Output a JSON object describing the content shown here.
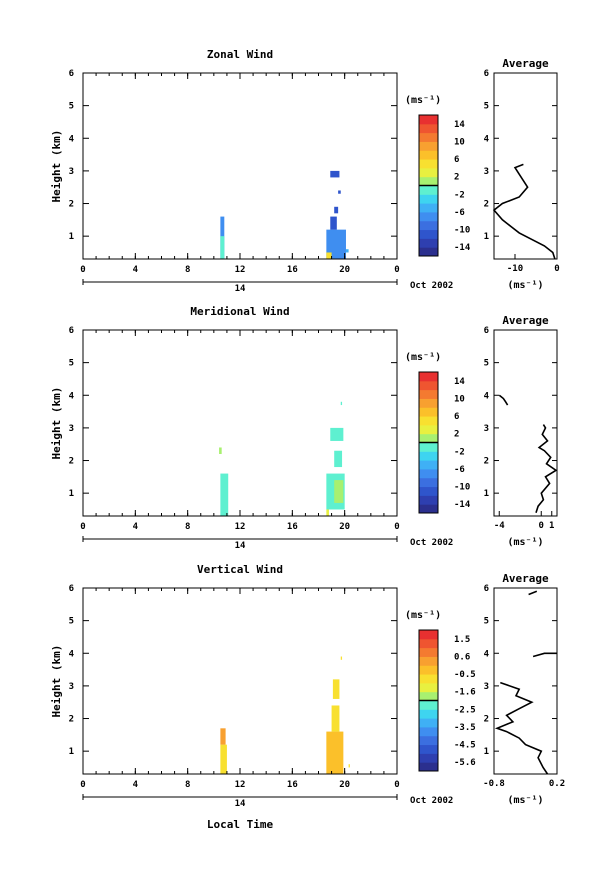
{
  "chart_data": [
    {
      "type": "heatmap",
      "title": "Zonal Wind",
      "ylabel": "Height (km)",
      "xlabel": "",
      "xticks": [
        "0",
        "4",
        "8",
        "12",
        "16",
        "20",
        "0"
      ],
      "yticks": [
        "1",
        "2",
        "3",
        "4",
        "5",
        "6"
      ],
      "xlim": [
        0,
        24
      ],
      "ylim": [
        0.3,
        6
      ],
      "date_day": "14",
      "date_month_year": "Oct 2002",
      "colorbar": {
        "unit": "(ms⁻¹)",
        "ticks": [
          "14",
          "10",
          "6",
          "2",
          "-2",
          "-6",
          "-10",
          "-14"
        ],
        "range": [
          -16,
          16
        ]
      },
      "cells": [
        {
          "t0": 10.5,
          "t1": 10.8,
          "h0": 0.3,
          "h1": 1.6,
          "v": -7
        },
        {
          "t0": 10.5,
          "t1": 10.8,
          "h0": 0.3,
          "h1": 1.0,
          "v": -2
        },
        {
          "t0": 18.6,
          "t1": 20.1,
          "h0": 0.3,
          "h1": 1.2,
          "v": -8
        },
        {
          "t0": 18.9,
          "t1": 19.4,
          "h0": 1.2,
          "h1": 1.6,
          "v": -12
        },
        {
          "t0": 18.6,
          "t1": 19.0,
          "h0": 0.3,
          "h1": 0.5,
          "v": 4
        },
        {
          "t0": 19.2,
          "t1": 19.5,
          "h0": 1.7,
          "h1": 1.9,
          "v": -12
        },
        {
          "t0": 19.5,
          "t1": 19.7,
          "h0": 2.3,
          "h1": 2.4,
          "v": -11
        },
        {
          "t0": 18.9,
          "t1": 19.6,
          "h0": 2.8,
          "h1": 3.0,
          "v": -11
        },
        {
          "t0": 20.1,
          "t1": 20.3,
          "h0": 0.5,
          "h1": 0.6,
          "v": -6
        }
      ],
      "average_profile": {
        "title": "Average",
        "unit": "(ms⁻¹)",
        "xticks": [
          "-10",
          "0"
        ],
        "xlim": [
          -15,
          0
        ],
        "ylim": [
          0.3,
          6
        ],
        "yticks": [
          "1",
          "2",
          "3",
          "4",
          "5",
          "6"
        ],
        "points": [
          {
            "v": -0.5,
            "h": 0.3
          },
          {
            "v": -1.0,
            "h": 0.5
          },
          {
            "v": -3,
            "h": 0.7
          },
          {
            "v": -6,
            "h": 0.9
          },
          {
            "v": -9,
            "h": 1.1
          },
          {
            "v": -11,
            "h": 1.3
          },
          {
            "v": -13,
            "h": 1.5
          },
          {
            "v": -15,
            "h": 1.8
          },
          {
            "v": -13,
            "h": 2.0
          },
          {
            "v": -9,
            "h": 2.2
          },
          {
            "v": -7,
            "h": 2.5
          },
          {
            "v": -8,
            "h": 2.7
          },
          {
            "v": -9,
            "h": 2.9
          },
          {
            "v": -10,
            "h": 3.1
          },
          {
            "v": -8,
            "h": 3.2
          }
        ]
      }
    },
    {
      "type": "heatmap",
      "title": "Meridional Wind",
      "ylabel": "Height (km)",
      "xlabel": "",
      "xticks": [
        "0",
        "4",
        "8",
        "12",
        "16",
        "20",
        "0"
      ],
      "yticks": [
        "1",
        "2",
        "3",
        "4",
        "5",
        "6"
      ],
      "xlim": [
        0,
        24
      ],
      "ylim": [
        0.3,
        6
      ],
      "date_day": "14",
      "date_month_year": "Oct 2002",
      "colorbar": {
        "unit": "(ms⁻¹)",
        "ticks": [
          "14",
          "10",
          "6",
          "2",
          "-2",
          "-6",
          "-10",
          "-14"
        ],
        "range": [
          -16,
          16
        ]
      },
      "cells": [
        {
          "t0": 10.5,
          "t1": 11.1,
          "h0": 0.3,
          "h1": 1.6,
          "v": -1
        },
        {
          "t0": 10.4,
          "t1": 10.6,
          "h0": 2.2,
          "h1": 2.4,
          "v": 0
        },
        {
          "t0": 18.6,
          "t1": 20.0,
          "h0": 0.5,
          "h1": 1.6,
          "v": -2
        },
        {
          "t0": 18.6,
          "t1": 18.8,
          "h0": 0.3,
          "h1": 0.5,
          "v": 2
        },
        {
          "t0": 19.2,
          "t1": 19.9,
          "h0": 0.7,
          "h1": 1.4,
          "v": 0
        },
        {
          "t0": 19.2,
          "t1": 19.8,
          "h0": 1.8,
          "h1": 2.3,
          "v": -1
        },
        {
          "t0": 18.9,
          "t1": 19.9,
          "h0": 2.6,
          "h1": 3.0,
          "v": -1
        },
        {
          "t0": 19.7,
          "t1": 19.8,
          "h0": 3.7,
          "h1": 3.8,
          "v": -1
        }
      ],
      "average_profile": {
        "title": "Average",
        "unit": "(ms⁻¹)",
        "xticks": [
          "-4",
          "0",
          "1"
        ],
        "xlim": [
          -4.5,
          1.5
        ],
        "ylim": [
          0.3,
          6
        ],
        "yticks": [
          "1",
          "2",
          "3",
          "4",
          "5",
          "6"
        ],
        "segments": [
          [
            {
              "v": -4.0,
              "h": 4.0
            },
            {
              "v": -3.6,
              "h": 3.9
            },
            {
              "v": -3.4,
              "h": 3.8
            },
            {
              "v": -3.2,
              "h": 3.7
            }
          ],
          [
            {
              "v": -0.5,
              "h": 0.4
            },
            {
              "v": -0.3,
              "h": 0.6
            },
            {
              "v": 0.2,
              "h": 0.8
            },
            {
              "v": 0.0,
              "h": 1.0
            },
            {
              "v": 0.8,
              "h": 1.3
            },
            {
              "v": 0.4,
              "h": 1.5
            },
            {
              "v": 1.4,
              "h": 1.7
            },
            {
              "v": 0.5,
              "h": 1.9
            },
            {
              "v": 0.9,
              "h": 2.1
            },
            {
              "v": 0.3,
              "h": 2.3
            },
            {
              "v": -0.2,
              "h": 2.4
            },
            {
              "v": 0.6,
              "h": 2.6
            },
            {
              "v": 0.1,
              "h": 2.8
            },
            {
              "v": 0.4,
              "h": 3.0
            },
            {
              "v": 0.2,
              "h": 3.1
            }
          ]
        ]
      }
    },
    {
      "type": "heatmap",
      "title": "Vertical Wind",
      "ylabel": "Height (km)",
      "xlabel": "Local Time",
      "xticks": [
        "0",
        "4",
        "8",
        "12",
        "16",
        "20",
        "0"
      ],
      "yticks": [
        "1",
        "2",
        "3",
        "4",
        "5",
        "6"
      ],
      "xlim": [
        0,
        24
      ],
      "ylim": [
        0.3,
        6
      ],
      "date_day": "14",
      "date_month_year": "Oct 2002",
      "colorbar": {
        "unit": "(ms⁻¹)",
        "ticks": [
          "1.5",
          "0.6",
          "-0.5",
          "-1.6",
          "-2.5",
          "-3.5",
          "-4.5",
          "-5.6"
        ],
        "range": [
          -6,
          2
        ]
      },
      "cells": [
        {
          "t0": 10.5,
          "t1": 11.0,
          "h0": 0.3,
          "h1": 1.2,
          "v": -0.6
        },
        {
          "t0": 10.5,
          "t1": 10.9,
          "h0": 1.2,
          "h1": 1.7,
          "v": 0.4
        },
        {
          "t0": 18.6,
          "t1": 19.9,
          "h0": 0.3,
          "h1": 1.6,
          "v": -0.2
        },
        {
          "t0": 19.0,
          "t1": 19.6,
          "h0": 1.6,
          "h1": 2.4,
          "v": -0.6
        },
        {
          "t0": 19.1,
          "t1": 19.6,
          "h0": 2.6,
          "h1": 3.2,
          "v": -0.8
        },
        {
          "t0": 20.3,
          "t1": 20.4,
          "h0": 0.5,
          "h1": 0.6,
          "v": -0.8
        },
        {
          "t0": 19.7,
          "t1": 19.8,
          "h0": 3.8,
          "h1": 3.9,
          "v": -0.9
        }
      ],
      "average_profile": {
        "title": "Average",
        "unit": "(ms⁻¹)",
        "xticks": [
          "-0.8",
          "0.2"
        ],
        "xlim": [
          -0.8,
          0.2
        ],
        "ylim": [
          0.3,
          6
        ],
        "yticks": [
          "1",
          "2",
          "3",
          "4",
          "5",
          "6"
        ],
        "segments": [
          [
            {
              "v": -0.25,
              "h": 5.8
            },
            {
              "v": -0.12,
              "h": 5.9
            }
          ],
          [
            {
              "v": -0.18,
              "h": 3.9
            },
            {
              "v": 0.0,
              "h": 4.0
            },
            {
              "v": 0.2,
              "h": 4.0
            }
          ],
          [
            {
              "v": 0.05,
              "h": 0.3
            },
            {
              "v": -0.02,
              "h": 0.5
            },
            {
              "v": -0.1,
              "h": 0.8
            },
            {
              "v": -0.05,
              "h": 1.0
            },
            {
              "v": -0.3,
              "h": 1.2
            },
            {
              "v": -0.4,
              "h": 1.4
            },
            {
              "v": -0.6,
              "h": 1.6
            },
            {
              "v": -0.75,
              "h": 1.7
            },
            {
              "v": -0.5,
              "h": 1.9
            },
            {
              "v": -0.6,
              "h": 2.1
            },
            {
              "v": -0.4,
              "h": 2.3
            },
            {
              "v": -0.2,
              "h": 2.5
            },
            {
              "v": -0.45,
              "h": 2.7
            },
            {
              "v": -0.4,
              "h": 2.9
            },
            {
              "v": -0.7,
              "h": 3.1
            }
          ]
        ]
      }
    }
  ]
}
